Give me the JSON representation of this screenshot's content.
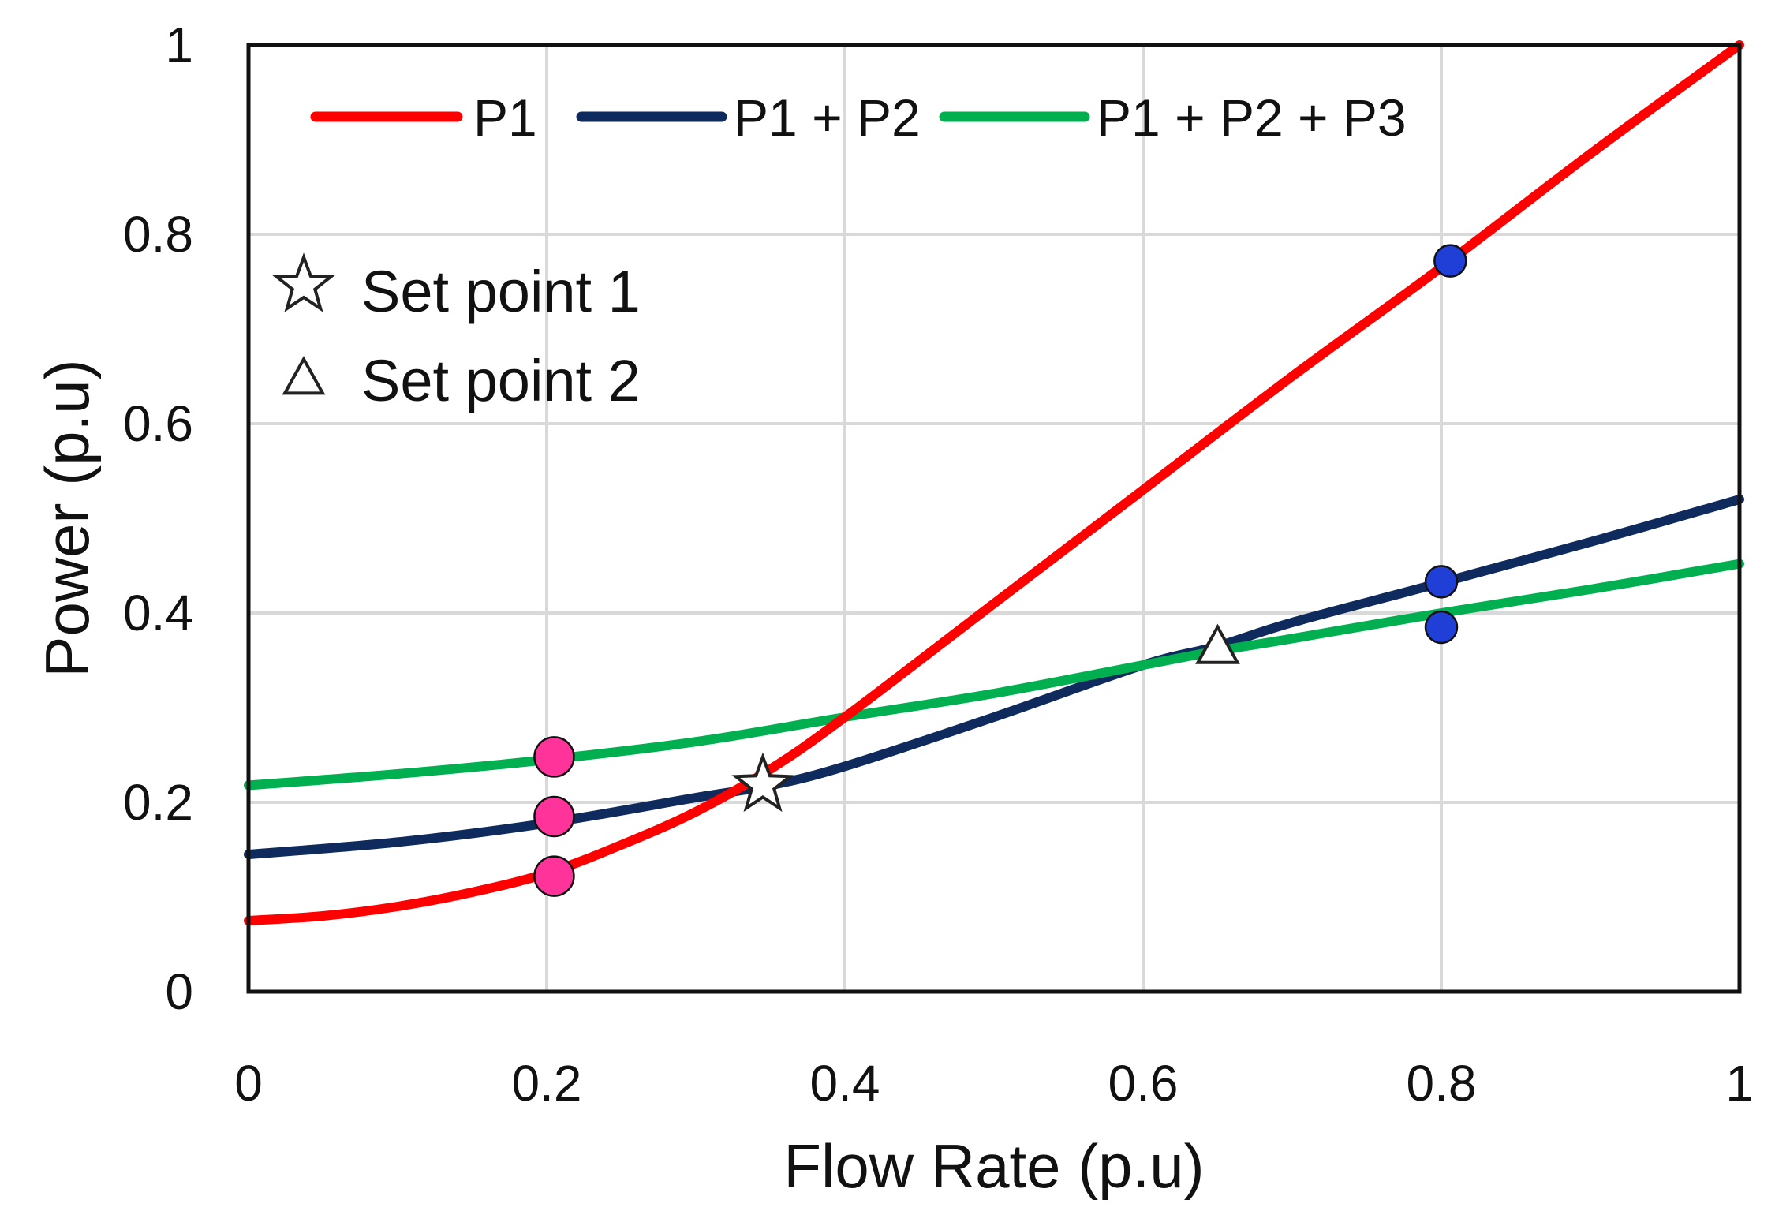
{
  "chart_data": {
    "type": "line",
    "title": "",
    "xlabel": "Flow Rate (p.u)",
    "ylabel": "Power (p.u)",
    "xlim": [
      0,
      1
    ],
    "ylim": [
      0,
      1
    ],
    "grid": true,
    "legend_position": "top",
    "colors": {
      "P1": "#ff0000",
      "P1 + P2": "#0f2a5c",
      "P1 + P2 + P3": "#00b050",
      "grid": "#d9d9d9",
      "frame": "#111111",
      "pink_marker": "#ff3399",
      "blue_marker": "#1f3fd6"
    },
    "x_ticks": [
      {
        "value": 0,
        "label": "0"
      },
      {
        "value": 0.2,
        "label": "0.2"
      },
      {
        "value": 0.4,
        "label": "0.4"
      },
      {
        "value": 0.6,
        "label": "0.6"
      },
      {
        "value": 0.8,
        "label": "0.8"
      },
      {
        "value": 1,
        "label": "1"
      }
    ],
    "y_ticks": [
      {
        "value": 0,
        "label": "0"
      },
      {
        "value": 0.2,
        "label": "0.2"
      },
      {
        "value": 0.4,
        "label": "0.4"
      },
      {
        "value": 0.6,
        "label": "0.6"
      },
      {
        "value": 0.8,
        "label": "0.8"
      },
      {
        "value": 1,
        "label": "1"
      }
    ],
    "series": [
      {
        "name": "P1",
        "x": [
          0,
          0.05,
          0.1,
          0.15,
          0.2,
          0.25,
          0.3,
          0.35,
          0.4,
          0.5,
          0.6,
          0.7,
          0.8,
          0.9,
          1.0
        ],
        "y": [
          0.075,
          0.08,
          0.09,
          0.105,
          0.125,
          0.155,
          0.19,
          0.235,
          0.29,
          0.41,
          0.53,
          0.65,
          0.765,
          0.885,
          1.0
        ]
      },
      {
        "name": "P1 + P2",
        "x": [
          0,
          0.1,
          0.2,
          0.3,
          0.35,
          0.4,
          0.5,
          0.6,
          0.65,
          0.7,
          0.8,
          0.9,
          1.0
        ],
        "y": [
          0.145,
          0.158,
          0.178,
          0.205,
          0.218,
          0.238,
          0.29,
          0.345,
          0.365,
          0.39,
          0.432,
          0.475,
          0.52
        ]
      },
      {
        "name": "P1 + P2 + P3",
        "x": [
          0,
          0.1,
          0.2,
          0.3,
          0.4,
          0.5,
          0.6,
          0.65,
          0.7,
          0.8,
          0.9,
          1.0
        ],
        "y": [
          0.218,
          0.23,
          0.245,
          0.264,
          0.29,
          0.315,
          0.345,
          0.36,
          0.373,
          0.4,
          0.425,
          0.452
        ]
      }
    ],
    "points": [
      {
        "name": "pink-dot-p1",
        "x": 0.205,
        "y": 0.122,
        "color_key": "pink_marker",
        "size": "large"
      },
      {
        "name": "pink-dot-p1p2",
        "x": 0.205,
        "y": 0.185,
        "color_key": "pink_marker",
        "size": "large"
      },
      {
        "name": "pink-dot-p1p2p3",
        "x": 0.205,
        "y": 0.248,
        "color_key": "pink_marker",
        "size": "large"
      },
      {
        "name": "blue-dot-p1",
        "x": 0.806,
        "y": 0.772,
        "color_key": "blue_marker",
        "size": "small"
      },
      {
        "name": "blue-dot-p1p2",
        "x": 0.8,
        "y": 0.433,
        "color_key": "blue_marker",
        "size": "small"
      },
      {
        "name": "blue-dot-p1p2p3",
        "x": 0.8,
        "y": 0.385,
        "color_key": "blue_marker",
        "size": "small"
      }
    ],
    "set_points": [
      {
        "name": "set-point-1-star",
        "marker": "star",
        "x": 0.345,
        "y": 0.218
      },
      {
        "name": "set-point-2-triangle",
        "marker": "triangle",
        "x": 0.65,
        "y": 0.362
      }
    ],
    "legend": [
      "P1",
      "P1 + P2",
      "P1 + P2 + P3"
    ],
    "marker_legend": [
      {
        "marker": "star",
        "label": "Set point 1"
      },
      {
        "marker": "triangle",
        "label": "Set point 2"
      }
    ]
  }
}
